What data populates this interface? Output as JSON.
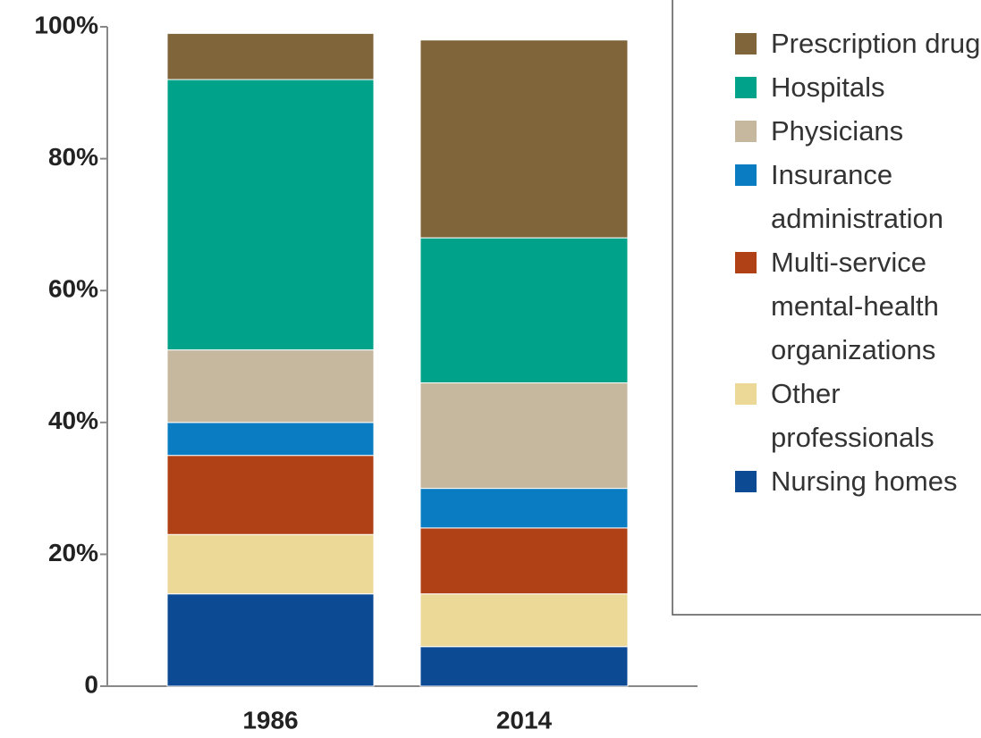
{
  "chart_data": {
    "type": "stacked_bar",
    "categories": [
      "1986",
      "2014"
    ],
    "series": [
      {
        "name": "Nursing homes",
        "color": "#0d4a94",
        "values": [
          14,
          6
        ]
      },
      {
        "name": "Other professionals",
        "color": "#ecd998",
        "values": [
          9,
          8
        ]
      },
      {
        "name": "Multi-service mental-health organizations",
        "color": "#b04116",
        "values": [
          12,
          10
        ]
      },
      {
        "name": "Insurance administration",
        "color": "#0a7cc1",
        "values": [
          5,
          6
        ]
      },
      {
        "name": "Physicians",
        "color": "#c5b89e",
        "values": [
          11,
          16
        ]
      },
      {
        "name": "Hospitals",
        "color": "#00a38a",
        "values": [
          41,
          22
        ]
      },
      {
        "name": "Prescription drugs",
        "color": "#7f6539",
        "values": [
          7,
          30
        ]
      }
    ],
    "ylim": [
      0,
      100
    ],
    "yticks": [
      0,
      {
        "value": 20,
        "label": "20%"
      },
      {
        "value": 40,
        "label": "40%"
      },
      {
        "value": 60,
        "label": "60%"
      },
      {
        "value": 80,
        "label": "80%"
      },
      {
        "value": 100,
        "label": "100%"
      }
    ]
  }
}
